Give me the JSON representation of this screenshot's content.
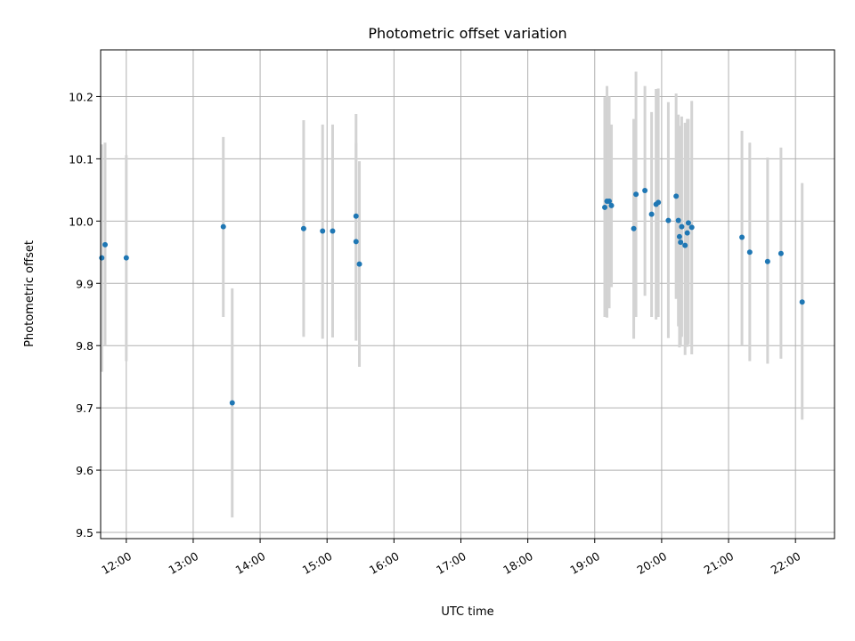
{
  "chart_data": {
    "type": "scatter",
    "title": "Photometric offset variation",
    "xlabel": "UTC time",
    "ylabel": "Photometric offset",
    "xlim": [
      "11:37",
      "22:35"
    ],
    "ylim": [
      9.49,
      10.275
    ],
    "grid": true,
    "x_ticks": [
      "12:00",
      "13:00",
      "14:00",
      "15:00",
      "16:00",
      "17:00",
      "18:00",
      "19:00",
      "20:00",
      "21:00",
      "22:00"
    ],
    "y_ticks": [
      "9.5",
      "9.6",
      "9.7",
      "9.8",
      "9.9",
      "10.0",
      "10.1",
      "10.2"
    ],
    "colors": {
      "point": "#1f77b4",
      "errorbar": "#d3d3d3"
    },
    "points": [
      {
        "x": "11:38",
        "y": 9.941,
        "err_low": 9.758,
        "err_high": 10.123
      },
      {
        "x": "11:41",
        "y": 9.962,
        "err_low": 9.8,
        "err_high": 10.126
      },
      {
        "x": "12:00",
        "y": 9.941,
        "err_low": 9.775,
        "err_high": 10.106
      },
      {
        "x": "13:27",
        "y": 9.991,
        "err_low": 9.846,
        "err_high": 10.135
      },
      {
        "x": "13:35",
        "y": 9.708,
        "err_low": 9.524,
        "err_high": 9.892
      },
      {
        "x": "14:39",
        "y": 9.988,
        "err_low": 9.814,
        "err_high": 10.162
      },
      {
        "x": "14:56",
        "y": 9.984,
        "err_low": 9.811,
        "err_high": 10.155
      },
      {
        "x": "15:05",
        "y": 9.984,
        "err_low": 9.813,
        "err_high": 10.155
      },
      {
        "x": "15:26",
        "y": 10.008,
        "err_low": 9.841,
        "err_high": 10.172
      },
      {
        "x": "15:26",
        "y": 9.967,
        "err_low": 9.808,
        "err_high": 10.125
      },
      {
        "x": "15:29",
        "y": 9.931,
        "err_low": 9.766,
        "err_high": 10.096
      },
      {
        "x": "19:09",
        "y": 10.022,
        "err_low": 9.846,
        "err_high": 10.199
      },
      {
        "x": "19:11",
        "y": 10.032,
        "err_low": 9.845,
        "err_high": 10.217
      },
      {
        "x": "19:13",
        "y": 10.032,
        "err_low": 9.86,
        "err_high": 10.2
      },
      {
        "x": "19:15",
        "y": 10.025,
        "err_low": 9.894,
        "err_high": 10.155
      },
      {
        "x": "19:35",
        "y": 9.988,
        "err_low": 9.811,
        "err_high": 10.164
      },
      {
        "x": "19:37",
        "y": 10.043,
        "err_low": 9.846,
        "err_high": 10.24
      },
      {
        "x": "19:45",
        "y": 10.049,
        "err_low": 9.88,
        "err_high": 10.217
      },
      {
        "x": "19:51",
        "y": 10.011,
        "err_low": 9.846,
        "err_high": 10.175
      },
      {
        "x": "19:55",
        "y": 10.027,
        "err_low": 9.842,
        "err_high": 10.212
      },
      {
        "x": "19:57",
        "y": 10.03,
        "err_low": 9.846,
        "err_high": 10.213
      },
      {
        "x": "20:06",
        "y": 10.001,
        "err_low": 9.812,
        "err_high": 10.191
      },
      {
        "x": "20:13",
        "y": 10.04,
        "err_low": 9.875,
        "err_high": 10.205
      },
      {
        "x": "20:15",
        "y": 10.001,
        "err_low": 9.831,
        "err_high": 10.171
      },
      {
        "x": "20:16",
        "y": 9.975,
        "err_low": 9.797,
        "err_high": 10.153
      },
      {
        "x": "20:17",
        "y": 9.966,
        "err_low": 9.8,
        "err_high": 10.132
      },
      {
        "x": "20:18",
        "y": 9.991,
        "err_low": 9.814,
        "err_high": 10.168
      },
      {
        "x": "20:21",
        "y": 9.961,
        "err_low": 9.785,
        "err_high": 10.158
      },
      {
        "x": "20:23",
        "y": 9.981,
        "err_low": 9.798,
        "err_high": 10.164
      },
      {
        "x": "20:24",
        "y": 9.997,
        "err_low": 9.802,
        "err_high": 10.164
      },
      {
        "x": "20:27",
        "y": 9.99,
        "err_low": 9.786,
        "err_high": 10.193
      },
      {
        "x": "21:12",
        "y": 9.974,
        "err_low": 9.8,
        "err_high": 10.145
      },
      {
        "x": "21:19",
        "y": 9.95,
        "err_low": 9.775,
        "err_high": 10.126
      },
      {
        "x": "21:35",
        "y": 9.935,
        "err_low": 9.771,
        "err_high": 10.102
      },
      {
        "x": "21:47",
        "y": 9.948,
        "err_low": 9.779,
        "err_high": 10.118
      },
      {
        "x": "22:06",
        "y": 9.87,
        "err_low": 9.681,
        "err_high": 10.061
      }
    ]
  }
}
